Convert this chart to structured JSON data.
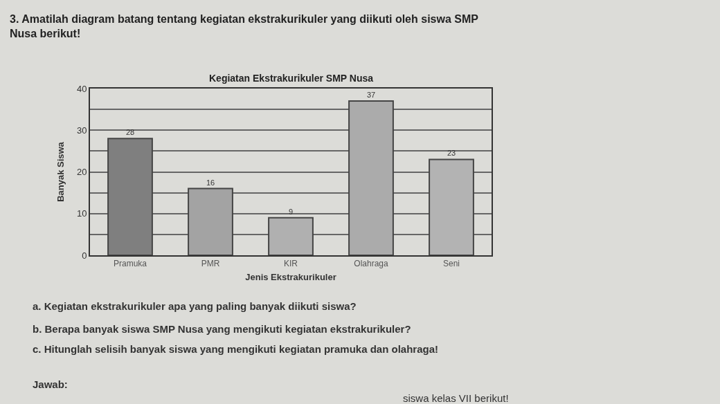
{
  "chart_data": {
    "type": "bar",
    "title": "Kegiatan Ekstrakurikuler SMP Nusa",
    "subtitle": "3. Amatilah diagram batang tentang kegiatan ekstrakurikuler yang diikuti oleh siswa SMP Nusa berikut!",
    "xlabel": "Jenis Ekstrakurikuler",
    "ylabel": "Banyak Siswa",
    "categories": [
      "Pramuka",
      "PMR",
      "KIR",
      "Olahraga",
      "Seni"
    ],
    "values": [
      28,
      16,
      9,
      37,
      23
    ],
    "colors": [
      "#7f7f7f",
      "#a3a3a3",
      "#b0b0b0",
      "#ababab",
      "#b3b3b3"
    ],
    "data_labels": true,
    "ylim": [
      0,
      40
    ],
    "yticks": [
      0,
      {
        "value": 5,
        "label": null
      },
      10,
      {
        "value": 15,
        "label": null
      },
      20,
      {
        "value": 25,
        "label": null
      },
      30,
      {
        "value": 35,
        "label": null
      },
      40
    ],
    "grid": "y",
    "legend": false,
    "annotations": [
      "a. Kegiatan ekstrakurikuler apa yang paling banyak diikuti siswa?",
      "b. Berapa banyak siswa SMP Nusa yang mengikuti kegiatan ekstrakurikuler?",
      "c. Hitunglah selisih banyak siswa yang mengikuti kegiatan pramuka dan olahraga!",
      "Jawab:",
      "siswa kelas VII berikut!"
    ]
  }
}
